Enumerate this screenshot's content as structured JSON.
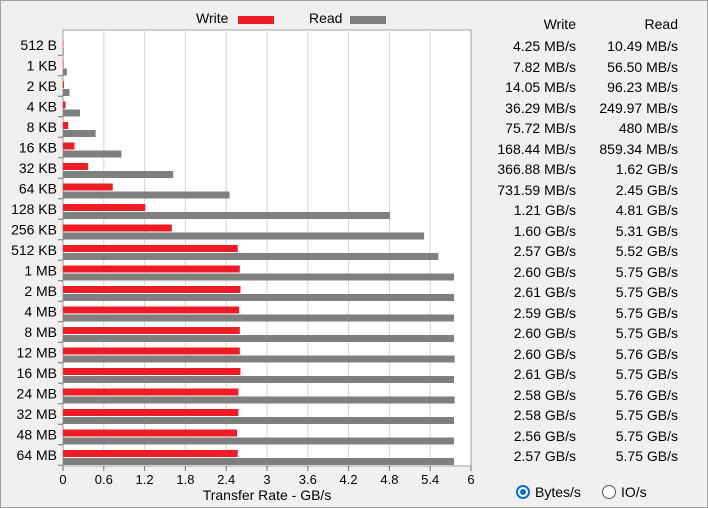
{
  "legend": {
    "write_label": "Write",
    "read_label": "Read"
  },
  "colors": {
    "write": "#ee1c24",
    "read": "#7f7f7f",
    "plot_bg": "#ffffff",
    "grid": "#d4d4d4",
    "radio_accent": "#0a6ed1"
  },
  "table": {
    "write_header": "Write",
    "read_header": "Read",
    "rows": [
      {
        "write": "4.25 MB/s",
        "read": "10.49 MB/s"
      },
      {
        "write": "7.82 MB/s",
        "read": "56.50 MB/s"
      },
      {
        "write": "14.05 MB/s",
        "read": "96.23 MB/s"
      },
      {
        "write": "36.29 MB/s",
        "read": "249.97 MB/s"
      },
      {
        "write": "75.72 MB/s",
        "read": "480 MB/s"
      },
      {
        "write": "168.44 MB/s",
        "read": "859.34 MB/s"
      },
      {
        "write": "366.88 MB/s",
        "read": "1.62 GB/s"
      },
      {
        "write": "731.59 MB/s",
        "read": "2.45 GB/s"
      },
      {
        "write": "1.21 GB/s",
        "read": "4.81 GB/s"
      },
      {
        "write": "1.60 GB/s",
        "read": "5.31 GB/s"
      },
      {
        "write": "2.57 GB/s",
        "read": "5.52 GB/s"
      },
      {
        "write": "2.60 GB/s",
        "read": "5.75 GB/s"
      },
      {
        "write": "2.61 GB/s",
        "read": "5.75 GB/s"
      },
      {
        "write": "2.59 GB/s",
        "read": "5.75 GB/s"
      },
      {
        "write": "2.60 GB/s",
        "read": "5.75 GB/s"
      },
      {
        "write": "2.60 GB/s",
        "read": "5.76 GB/s"
      },
      {
        "write": "2.61 GB/s",
        "read": "5.75 GB/s"
      },
      {
        "write": "2.58 GB/s",
        "read": "5.76 GB/s"
      },
      {
        "write": "2.58 GB/s",
        "read": "5.75 GB/s"
      },
      {
        "write": "2.56 GB/s",
        "read": "5.75 GB/s"
      },
      {
        "write": "2.57 GB/s",
        "read": "5.75 GB/s"
      }
    ]
  },
  "mode": {
    "bytes_label": "Bytes/s",
    "io_label": "IO/s",
    "selected": "bytes"
  },
  "chart_data": {
    "type": "bar",
    "orientation": "horizontal",
    "categories": [
      "512 B",
      "1 KB",
      "2 KB",
      "4 KB",
      "8 KB",
      "16 KB",
      "32 KB",
      "64 KB",
      "128 KB",
      "256 KB",
      "512 KB",
      "1 MB",
      "2 MB",
      "4 MB",
      "8 MB",
      "12 MB",
      "16 MB",
      "24 MB",
      "32 MB",
      "48 MB",
      "64 MB"
    ],
    "series": [
      {
        "name": "Write",
        "values": [
          0.00425,
          0.00782,
          0.01405,
          0.03629,
          0.07572,
          0.16844,
          0.36688,
          0.73159,
          1.21,
          1.6,
          2.57,
          2.6,
          2.61,
          2.59,
          2.6,
          2.6,
          2.61,
          2.58,
          2.58,
          2.56,
          2.57
        ]
      },
      {
        "name": "Read",
        "values": [
          0.01049,
          0.0565,
          0.09623,
          0.24997,
          0.48,
          0.85934,
          1.62,
          2.45,
          4.81,
          5.31,
          5.52,
          5.75,
          5.75,
          5.75,
          5.75,
          5.76,
          5.75,
          5.76,
          5.75,
          5.75,
          5.75
        ]
      }
    ],
    "xlabel": "Transfer Rate - GB/s",
    "ylabel": "",
    "xlim": [
      0,
      6
    ],
    "xticks": [
      "0",
      "0.6",
      "1.2",
      "1.8",
      "2.4",
      "3",
      "3.6",
      "4.2",
      "4.8",
      "5.4",
      "6"
    ],
    "grid": true,
    "legend_position": "top"
  }
}
